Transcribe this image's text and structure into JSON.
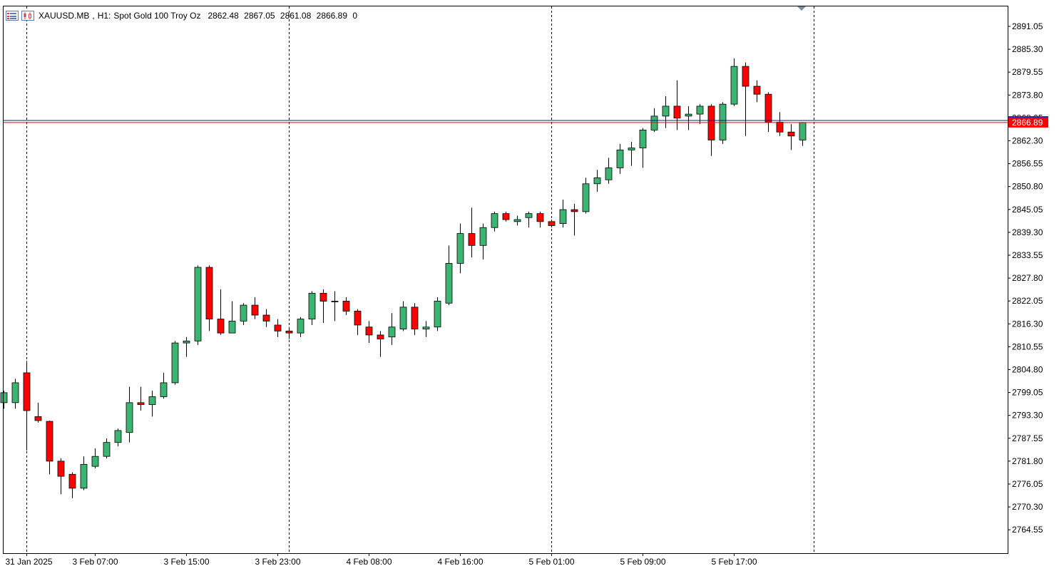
{
  "header": {
    "symbol": "XAUUSD.MB",
    "timeframe": "H1:",
    "description": "Spot Gold 100 Troy Oz",
    "open": "2862.48",
    "high": "2867.05",
    "low": "2861.08",
    "close": "2866.89",
    "volume": "0",
    "icons": [
      "list-icon",
      "chart-bars-icon"
    ]
  },
  "chart_data": {
    "type": "candlestick",
    "symbol": "XAUUSD.MB",
    "timeframe": "H1",
    "ylim": [
      2760.0,
      2895.0
    ],
    "y_ticks": [
      "2891.05",
      "2885.30",
      "2879.55",
      "2873.80",
      "2868.05",
      "2862.30",
      "2856.55",
      "2850.80",
      "2845.05",
      "2839.30",
      "2833.55",
      "2827.80",
      "2822.05",
      "2816.30",
      "2810.55",
      "2804.80",
      "2799.05",
      "2793.30",
      "2787.55",
      "2781.80",
      "2776.05",
      "2770.30",
      "2764.55"
    ],
    "x_labels": [
      {
        "index": 2,
        "label": "31 Jan 2025"
      },
      {
        "index": 8,
        "label": "3 Feb 07:00"
      },
      {
        "index": 16,
        "label": "3 Feb 15:00"
      },
      {
        "index": 24,
        "label": "3 Feb 23:00"
      },
      {
        "index": 32,
        "label": "4 Feb 08:00"
      },
      {
        "index": 40,
        "label": "4 Feb 16:00"
      },
      {
        "index": 48,
        "label": "5 Feb 01:00"
      },
      {
        "index": 56,
        "label": "5 Feb 09:00"
      },
      {
        "index": 64,
        "label": "5 Feb 17:00"
      }
    ],
    "day_separators": [
      2,
      25,
      48,
      71
    ],
    "current_price": 2866.89,
    "current_price_label": "2866.89",
    "ask_price": 2867.4,
    "colors": {
      "bull": "#3cb371",
      "bear": "#ff0000",
      "wick": "#000000",
      "bid_line": "#ff0000",
      "ask_line": "#1a1a6e",
      "grid": "#000000"
    },
    "candles": [
      {
        "o": 2796.5,
        "h": 2799.5,
        "l": 2795.0,
        "c": 2799.0
      },
      {
        "o": 2796.5,
        "h": 2802.5,
        "l": 2795.0,
        "c": 2801.5
      },
      {
        "o": 2804.0,
        "h": 2807.0,
        "l": 2784.5,
        "c": 2794.5
      },
      {
        "o": 2793.0,
        "h": 2796.5,
        "l": 2791.5,
        "c": 2792.0
      },
      {
        "o": 2791.8,
        "h": 2792.0,
        "l": 2778.5,
        "c": 2781.8
      },
      {
        "o": 2781.8,
        "h": 2782.5,
        "l": 2773.5,
        "c": 2778.0
      },
      {
        "o": 2778.5,
        "h": 2779.0,
        "l": 2772.5,
        "c": 2775.0
      },
      {
        "o": 2775.0,
        "h": 2783.0,
        "l": 2774.5,
        "c": 2781.0
      },
      {
        "o": 2780.5,
        "h": 2785.0,
        "l": 2780.0,
        "c": 2783.0
      },
      {
        "o": 2783.0,
        "h": 2787.5,
        "l": 2782.5,
        "c": 2786.5
      },
      {
        "o": 2786.5,
        "h": 2790.0,
        "l": 2785.5,
        "c": 2789.5
      },
      {
        "o": 2789.0,
        "h": 2800.5,
        "l": 2786.5,
        "c": 2796.5
      },
      {
        "o": 2796.5,
        "h": 2800.5,
        "l": 2794.5,
        "c": 2796.0
      },
      {
        "o": 2796.0,
        "h": 2799.5,
        "l": 2793.0,
        "c": 2798.0
      },
      {
        "o": 2798.0,
        "h": 2804.0,
        "l": 2797.5,
        "c": 2801.5
      },
      {
        "o": 2801.5,
        "h": 2812.0,
        "l": 2801.0,
        "c": 2811.5
      },
      {
        "o": 2811.5,
        "h": 2813.0,
        "l": 2808.0,
        "c": 2812.0
      },
      {
        "o": 2812.0,
        "h": 2831.0,
        "l": 2811.0,
        "c": 2830.5
      },
      {
        "o": 2830.5,
        "h": 2831.0,
        "l": 2814.5,
        "c": 2817.5
      },
      {
        "o": 2817.5,
        "h": 2825.0,
        "l": 2813.5,
        "c": 2814.0
      },
      {
        "o": 2814.0,
        "h": 2822.0,
        "l": 2814.0,
        "c": 2817.0
      },
      {
        "o": 2817.0,
        "h": 2821.5,
        "l": 2816.0,
        "c": 2821.0
      },
      {
        "o": 2821.0,
        "h": 2823.0,
        "l": 2817.5,
        "c": 2818.5
      },
      {
        "o": 2818.5,
        "h": 2820.0,
        "l": 2815.5,
        "c": 2817.0
      },
      {
        "o": 2816.0,
        "h": 2817.5,
        "l": 2813.0,
        "c": 2814.5
      },
      {
        "o": 2814.5,
        "h": 2815.5,
        "l": 2812.5,
        "c": 2814.0
      },
      {
        "o": 2814.0,
        "h": 2818.0,
        "l": 2813.0,
        "c": 2817.5
      },
      {
        "o": 2817.5,
        "h": 2824.5,
        "l": 2816.0,
        "c": 2824.0
      },
      {
        "o": 2824.0,
        "h": 2825.0,
        "l": 2816.5,
        "c": 2822.0
      },
      {
        "o": 2822.0,
        "h": 2824.5,
        "l": 2817.0,
        "c": 2822.0
      },
      {
        "o": 2822.0,
        "h": 2823.0,
        "l": 2818.5,
        "c": 2819.5
      },
      {
        "o": 2819.5,
        "h": 2820.0,
        "l": 2813.5,
        "c": 2816.0
      },
      {
        "o": 2815.5,
        "h": 2817.0,
        "l": 2811.5,
        "c": 2813.5
      },
      {
        "o": 2813.5,
        "h": 2814.5,
        "l": 2808.0,
        "c": 2812.5
      },
      {
        "o": 2813.0,
        "h": 2819.0,
        "l": 2811.0,
        "c": 2815.5
      },
      {
        "o": 2815.0,
        "h": 2822.0,
        "l": 2814.5,
        "c": 2820.5
      },
      {
        "o": 2820.5,
        "h": 2821.5,
        "l": 2813.5,
        "c": 2815.0
      },
      {
        "o": 2815.0,
        "h": 2817.0,
        "l": 2813.0,
        "c": 2815.5
      },
      {
        "o": 2815.5,
        "h": 2823.0,
        "l": 2814.5,
        "c": 2822.0
      },
      {
        "o": 2821.5,
        "h": 2836.0,
        "l": 2821.0,
        "c": 2831.5
      },
      {
        "o": 2831.5,
        "h": 2841.5,
        "l": 2829.0,
        "c": 2839.0
      },
      {
        "o": 2839.0,
        "h": 2845.5,
        "l": 2833.0,
        "c": 2836.0
      },
      {
        "o": 2836.0,
        "h": 2841.5,
        "l": 2832.5,
        "c": 2840.5
      },
      {
        "o": 2840.5,
        "h": 2844.5,
        "l": 2839.5,
        "c": 2844.0
      },
      {
        "o": 2844.0,
        "h": 2844.5,
        "l": 2842.0,
        "c": 2842.5
      },
      {
        "o": 2842.0,
        "h": 2843.5,
        "l": 2841.0,
        "c": 2842.5
      },
      {
        "o": 2843.0,
        "h": 2844.5,
        "l": 2840.5,
        "c": 2844.0
      },
      {
        "o": 2844.0,
        "h": 2844.5,
        "l": 2840.5,
        "c": 2842.0
      },
      {
        "o": 2842.0,
        "h": 2842.5,
        "l": 2840.5,
        "c": 2841.0
      },
      {
        "o": 2841.5,
        "h": 2847.5,
        "l": 2840.5,
        "c": 2845.0
      },
      {
        "o": 2845.0,
        "h": 2846.5,
        "l": 2838.5,
        "c": 2844.5
      },
      {
        "o": 2844.5,
        "h": 2853.0,
        "l": 2844.0,
        "c": 2851.5
      },
      {
        "o": 2851.5,
        "h": 2855.0,
        "l": 2849.5,
        "c": 2853.0
      },
      {
        "o": 2852.5,
        "h": 2858.0,
        "l": 2851.5,
        "c": 2855.5
      },
      {
        "o": 2855.5,
        "h": 2861.5,
        "l": 2854.0,
        "c": 2860.0
      },
      {
        "o": 2860.0,
        "h": 2862.0,
        "l": 2856.0,
        "c": 2860.5
      },
      {
        "o": 2860.5,
        "h": 2865.5,
        "l": 2855.5,
        "c": 2865.0
      },
      {
        "o": 2865.0,
        "h": 2870.5,
        "l": 2864.5,
        "c": 2868.5
      },
      {
        "o": 2868.5,
        "h": 2873.5,
        "l": 2865.5,
        "c": 2871.0
      },
      {
        "o": 2871.0,
        "h": 2877.5,
        "l": 2865.0,
        "c": 2868.0
      },
      {
        "o": 2868.5,
        "h": 2871.0,
        "l": 2865.0,
        "c": 2869.0
      },
      {
        "o": 2869.0,
        "h": 2871.5,
        "l": 2866.5,
        "c": 2871.0
      },
      {
        "o": 2871.0,
        "h": 2871.5,
        "l": 2858.5,
        "c": 2862.5
      },
      {
        "o": 2862.5,
        "h": 2872.0,
        "l": 2861.5,
        "c": 2871.5
      },
      {
        "o": 2871.5,
        "h": 2883.0,
        "l": 2871.0,
        "c": 2881.0
      },
      {
        "o": 2881.0,
        "h": 2882.0,
        "l": 2863.5,
        "c": 2876.0
      },
      {
        "o": 2876.0,
        "h": 2877.5,
        "l": 2872.0,
        "c": 2874.0
      },
      {
        "o": 2874.0,
        "h": 2874.5,
        "l": 2864.5,
        "c": 2867.0
      },
      {
        "o": 2867.0,
        "h": 2869.5,
        "l": 2863.5,
        "c": 2864.5
      },
      {
        "o": 2864.5,
        "h": 2866.5,
        "l": 2860.0,
        "c": 2863.5
      },
      {
        "o": 2862.5,
        "h": 2867.0,
        "l": 2861.0,
        "c": 2866.9
      }
    ]
  }
}
